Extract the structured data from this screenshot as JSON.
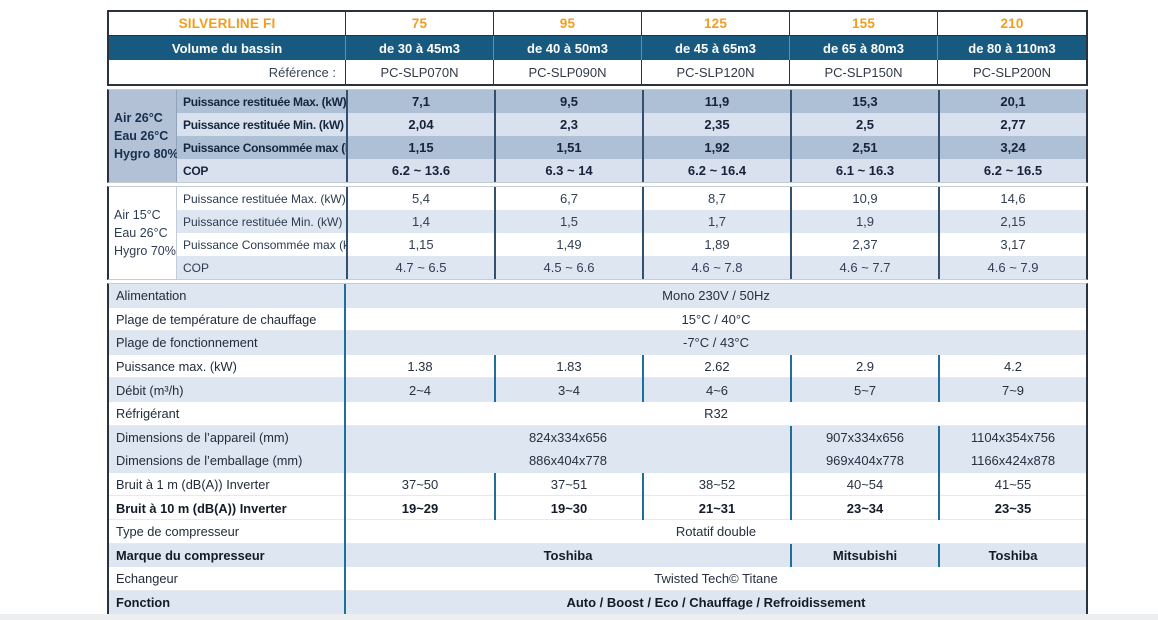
{
  "colors": {
    "orange": "#f39d1c",
    "header_blue": "#17597f",
    "band_dark": "#aec0d5",
    "band_light": "#d9e1ee",
    "shade": "#dee6f2",
    "sep_teal": "#1f6f9b",
    "sep_navy": "#33516f",
    "border_dark": "#2a323d"
  },
  "header": {
    "title": "SILVERLINE FI",
    "models": [
      "75",
      "95",
      "125",
      "155",
      "210"
    ],
    "volume_label": "Volume du bassin",
    "volumes": [
      "de 30 à 45m3",
      "de 40 à 50m3",
      "de 45 à 65m3",
      "de 65 à 80m3",
      "de 80 à 110m3"
    ],
    "reference_label": "Référence :",
    "references": [
      "PC-SLP070N",
      "PC-SLP090N",
      "PC-SLP120N",
      "PC-SLP150N",
      "PC-SLP200N"
    ]
  },
  "sections": {
    "air26": {
      "condition_lines": [
        "Air 26°C",
        "Eau 26°C",
        "Hygro 80%"
      ],
      "rows": [
        {
          "label": "Puissance restituée Max. (kW)",
          "values": [
            "7,1",
            "9,5",
            "11,9",
            "15,3",
            "20,1"
          ]
        },
        {
          "label": "Puissance restituée Min. (kW)",
          "values": [
            "2,04",
            "2,3",
            "2,35",
            "2,5",
            "2,77"
          ]
        },
        {
          "label": "Puissance Consommée max (kW)",
          "values": [
            "1,15",
            "1,51",
            "1,92",
            "2,51",
            "3,24"
          ]
        },
        {
          "label": "COP",
          "values": [
            "6.2 ~ 13.6",
            "6.3 ~ 14",
            "6.2 ~ 16.4",
            "6.1 ~ 16.3",
            "6.2 ~ 16.5"
          ]
        }
      ]
    },
    "air15": {
      "condition_lines": [
        "Air 15°C",
        "Eau 26°C",
        "Hygro 70%"
      ],
      "rows": [
        {
          "label": "Puissance restituée Max. (kW)",
          "values": [
            "5,4",
            "6,7",
            "8,7",
            "10,9",
            "14,6"
          ]
        },
        {
          "label": "Puissance restituée Min. (kW)",
          "values": [
            "1,4",
            "1,5",
            "1,7",
            "1,9",
            "2,15"
          ]
        },
        {
          "label": "Puissance Consommée max (kW)",
          "values": [
            "1,15",
            "1,49",
            "1,89",
            "2,37",
            "3,17"
          ]
        },
        {
          "label": "COP",
          "values": [
            "4.7 ~ 6.5",
            "4.5 ~ 6.6",
            "4.6 ~ 7.8",
            "4.6 ~ 7.7",
            "4.6 ~ 7.9"
          ]
        }
      ]
    }
  },
  "specs": [
    {
      "label": "Alimentation",
      "type": "span",
      "value": "Mono 230V / 50Hz",
      "shaded": true,
      "bold": false
    },
    {
      "label": "Plage de température de chauffage",
      "type": "span",
      "value": "15°C / 40°C",
      "shaded": false,
      "bold": false
    },
    {
      "label": "Plage de fonctionnement",
      "type": "span",
      "value": "-7°C / 43°C",
      "shaded": true,
      "bold": false
    },
    {
      "label": "Puissance max. (kW)",
      "type": "cols",
      "values": [
        "1.38",
        "1.83",
        "2.62",
        "2.9",
        "4.2"
      ],
      "shaded": false,
      "bold": false
    },
    {
      "label": "Débit (m³/h)",
      "type": "cols",
      "values": [
        "2~4",
        "3~4",
        "4~6",
        "5~7",
        "7~9"
      ],
      "shaded": true,
      "bold": false
    },
    {
      "label": "Réfrigérant",
      "type": "span",
      "value": "R32",
      "shaded": false,
      "bold": false
    },
    {
      "label": "Dimensions de l’appareil (mm)",
      "type": "merged",
      "values": [
        "824x334x656",
        "907x334x656",
        "1104x354x756"
      ],
      "shaded": true,
      "bold": false
    },
    {
      "label": "Dimensions de l’emballage (mm)",
      "type": "merged",
      "values": [
        "886x404x778",
        "969x404x778",
        "1166x424x878"
      ],
      "shaded": true,
      "bold": false
    },
    {
      "label": "Bruit à 1 m (dB(A)) Inverter",
      "type": "cols",
      "values": [
        "37~50",
        "37~51",
        "38~52",
        "40~54",
        "41~55"
      ],
      "shaded": false,
      "bold": false
    },
    {
      "label": "Bruit à 10 m (dB(A)) Inverter",
      "type": "cols",
      "values": [
        "19~29",
        "19~30",
        "21~31",
        "23~34",
        "23~35"
      ],
      "shaded": false,
      "bold": true
    },
    {
      "label": "Type de compresseur",
      "type": "span",
      "value": "Rotatif double",
      "shaded": false,
      "bold": false
    },
    {
      "label": "Marque du compresseur",
      "type": "merged",
      "values": [
        "Toshiba",
        "Mitsubishi",
        "Toshiba"
      ],
      "shaded": true,
      "bold": true
    },
    {
      "label": "Echangeur",
      "type": "span",
      "value": "Twisted Tech© Titane",
      "shaded": false,
      "bold": false
    },
    {
      "label": "Fonction",
      "type": "span",
      "value": "Auto / Boost / Eco / Chauffage / Refroidissement",
      "shaded": true,
      "bold": true
    }
  ]
}
